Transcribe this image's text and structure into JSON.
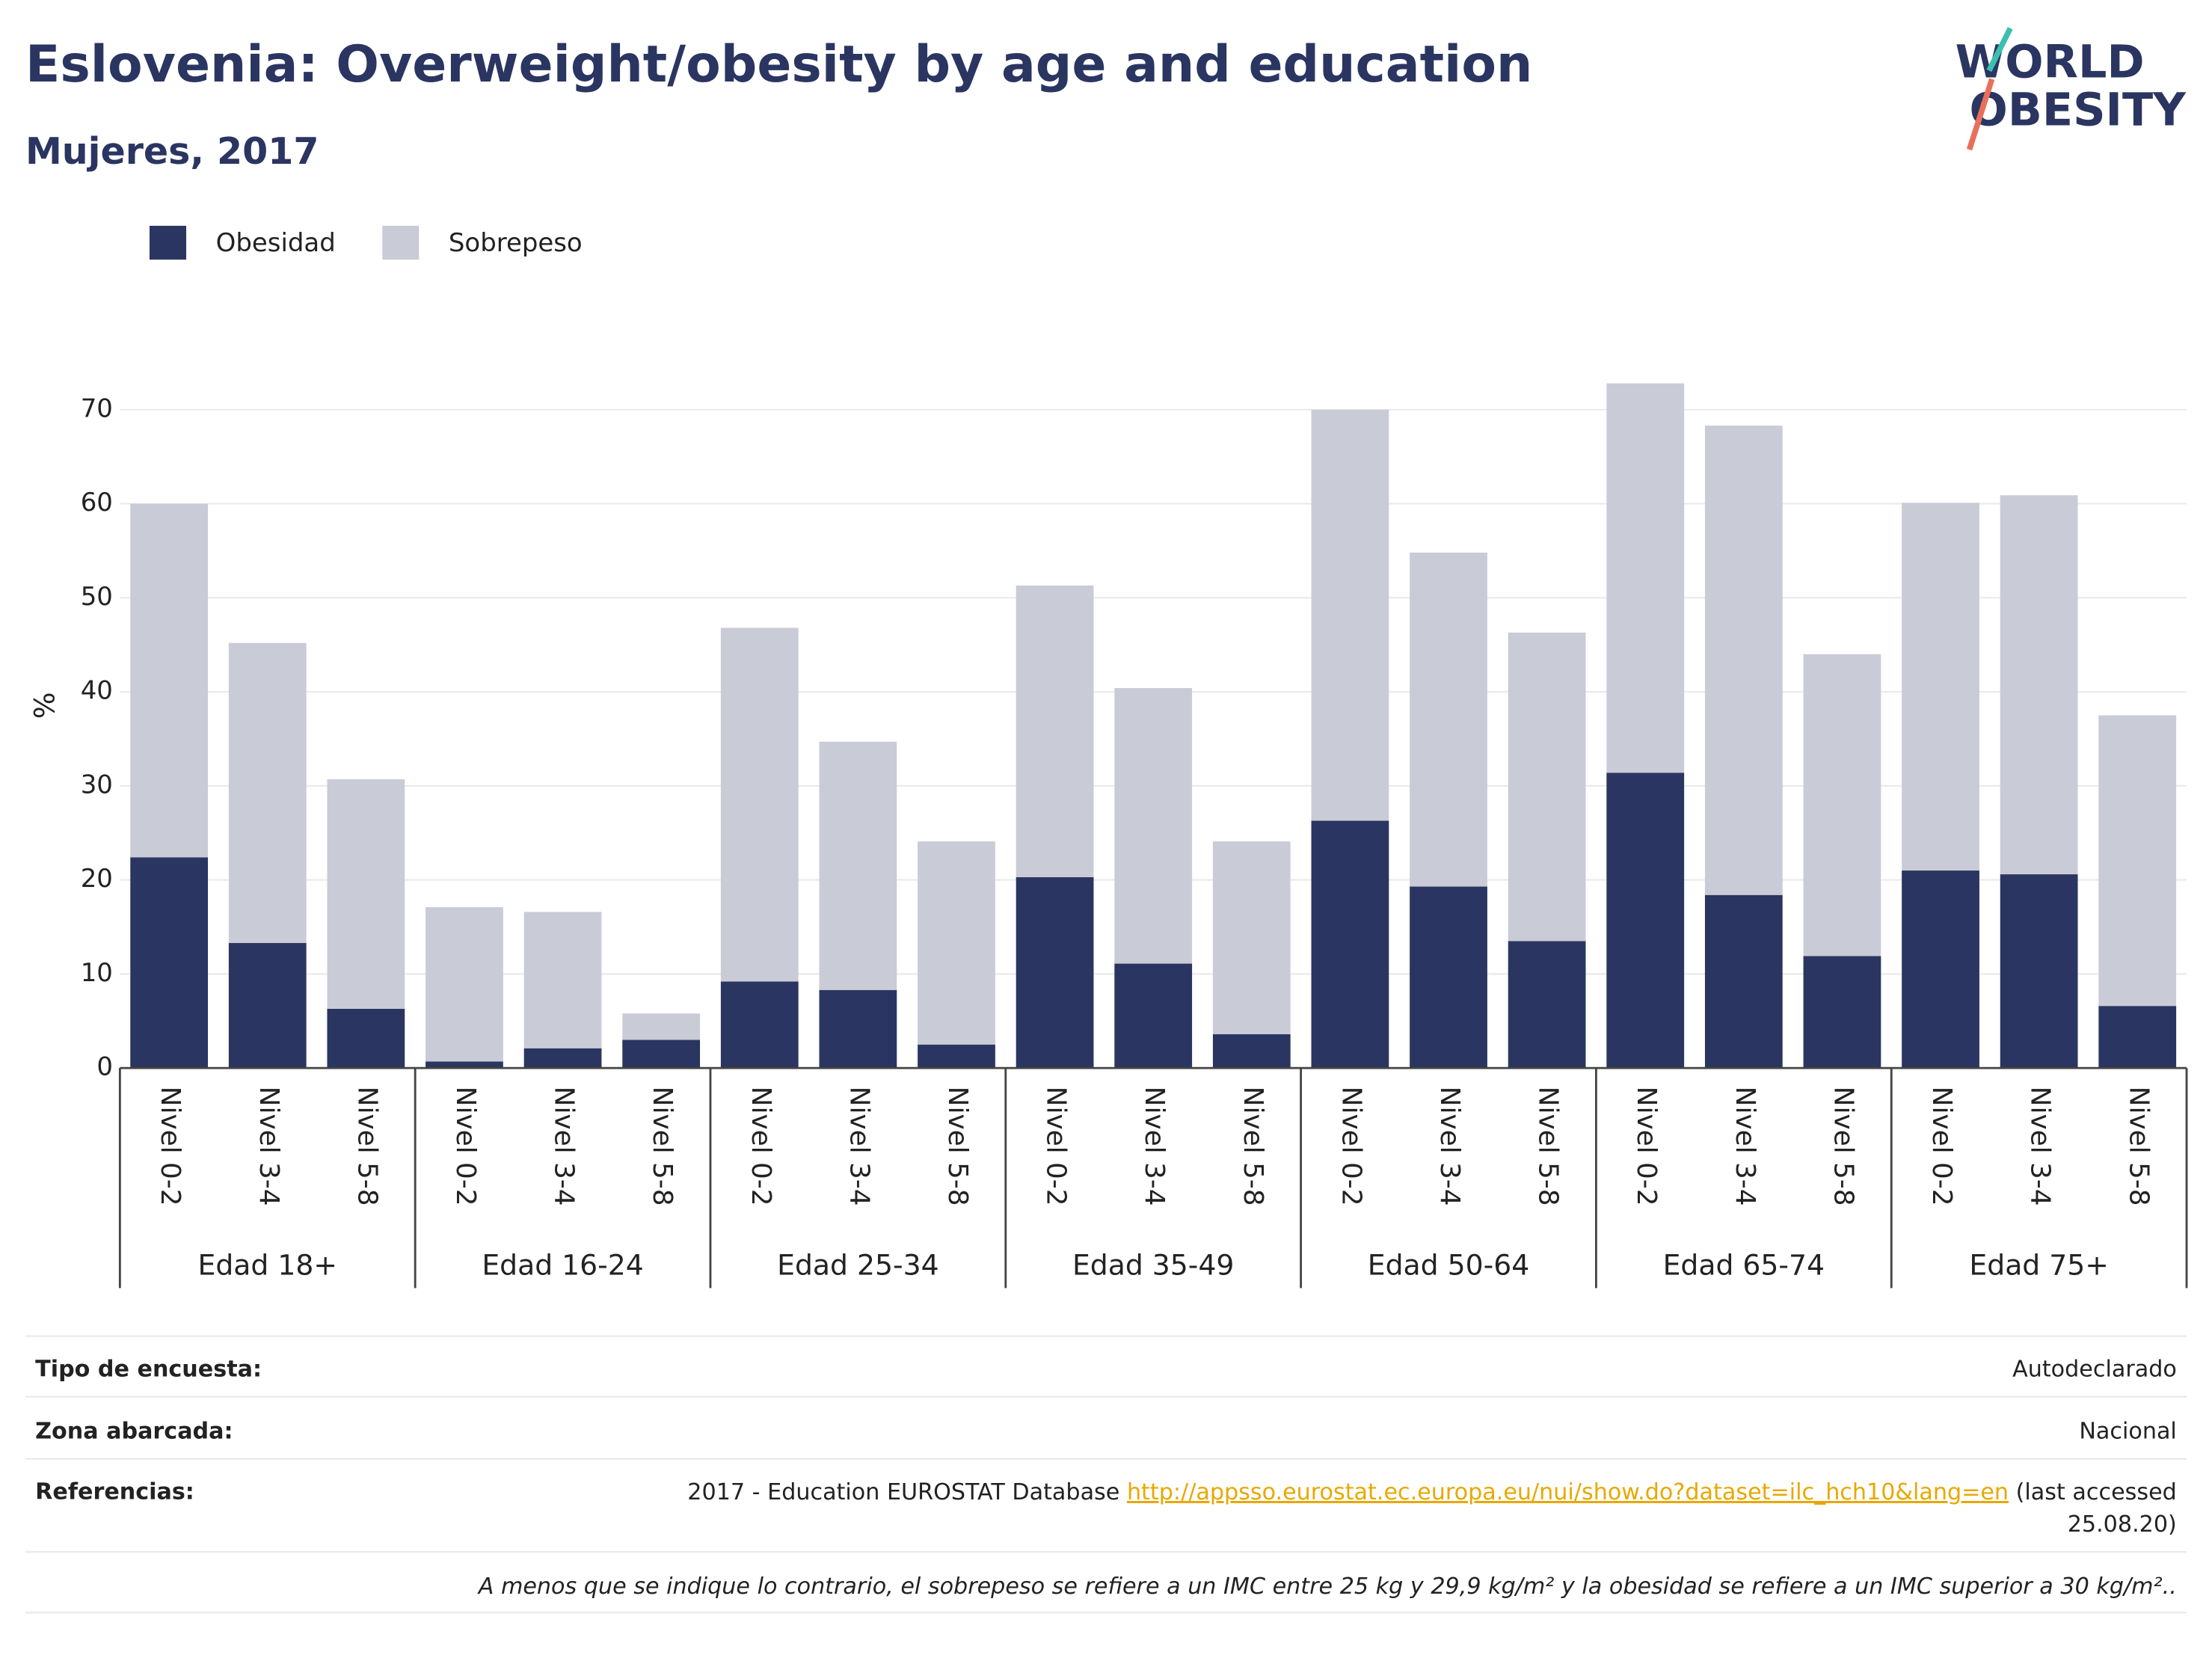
{
  "chart_data": {
    "type": "stacked_bar",
    "title": "Eslovenia: Overweight/obesity by age and education",
    "subtitle": "Mujeres, 2017",
    "ylabel": "%",
    "groups": [
      "Edad 18+",
      "Edad 16-24",
      "Edad 25-34",
      "Edad 35-49",
      "Edad 50-64",
      "Edad 65-74",
      "Edad 75+"
    ],
    "categories": [
      "Nivel 0-2",
      "Nivel 3-4",
      "Nivel 5-8",
      "Nivel 0-2",
      "Nivel 3-4",
      "Nivel 5-8",
      "Nivel 0-2",
      "Nivel 3-4",
      "Nivel 5-8",
      "Nivel 0-2",
      "Nivel 3-4",
      "Nivel 5-8",
      "Nivel 0-2",
      "Nivel 3-4",
      "Nivel 5-8",
      "Nivel 0-2",
      "Nivel 3-4",
      "Nivel 5-8",
      "Nivel 0-2",
      "Nivel 3-4",
      "Nivel 5-8"
    ],
    "series": [
      {
        "name": "Obesidad",
        "color": "#2a3561",
        "values": [
          22.4,
          13.3,
          6.3,
          0.7,
          2.1,
          3.0,
          9.2,
          8.3,
          2.5,
          20.3,
          11.1,
          3.6,
          26.3,
          19.3,
          13.5,
          31.4,
          18.4,
          11.9,
          21.0,
          20.6,
          6.6
        ]
      },
      {
        "name": "Sobrepeso",
        "color": "#c9cbd6",
        "values": [
          37.6,
          31.9,
          24.4,
          16.4,
          14.5,
          2.8,
          37.6,
          26.4,
          21.6,
          31.0,
          29.3,
          20.5,
          43.7,
          35.5,
          32.8,
          41.4,
          49.9,
          32.1,
          39.1,
          40.3,
          30.9
        ]
      }
    ],
    "ylim": [
      0,
      75
    ],
    "yticks": [
      0,
      10,
      20,
      30,
      40,
      50,
      60,
      70
    ],
    "grid": true,
    "legend": "top-left"
  },
  "logo": {
    "line1": "WORLD",
    "line2": "OBESITY"
  },
  "footer": {
    "rows": [
      {
        "label": "Tipo de encuesta:",
        "value": "Autodeclarado"
      },
      {
        "label": "Zona abarcada:",
        "value": "Nacional"
      }
    ],
    "reference": {
      "label": "Referencias:",
      "text": "2017 - Education EUROSTAT Database ",
      "link": "http://appsso.eurostat.ec.europa.eu/nui/show.do?dataset=ilc_hch10&lang=en",
      "suffix_lines": [
        " (last accessed",
        "25.08.20)"
      ]
    },
    "note": "A menos que se indique lo contrario, el sobrepeso se refiere a un IMC entre 25 kg y 29,9 kg/m² y la obesidad se refiere a un IMC superior a 30 kg/m².."
  }
}
